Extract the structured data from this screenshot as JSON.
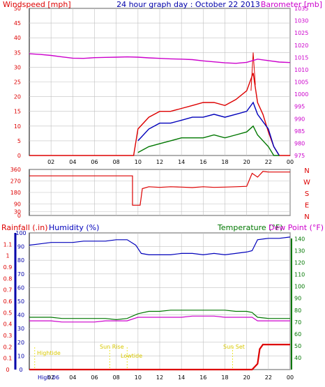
{
  "header": {
    "windspeed_label": "Windspeed [mph]",
    "title": "24 hour graph day : October 22 2013",
    "barometer_label": "Barometer [mb]"
  },
  "labels_panel3": {
    "rainfall": "Rainfall (.in)",
    "humidity": "Humidity (%)",
    "temperature": "Temperature (°F)",
    "dewpoint": "Dew Point (°F)"
  },
  "annotations": {
    "hightide": "Hightide",
    "sunrise": "Sun Rise",
    "lowtide": "Lowtide",
    "sunset": "Sun Set",
    "bottom_text": "High 06"
  },
  "colors": {
    "red": "#dd0000",
    "magenta": "#cc00cc",
    "blue": "#0000bb",
    "green": "#007700",
    "navy": "#0000aa",
    "grid": "#c0c0c0",
    "tide": "#e8e000"
  },
  "chart_data": [
    {
      "type": "line",
      "name": "wind-barometer",
      "x_ticks": [
        "02",
        "04",
        "06",
        "08",
        "10",
        "12",
        "14",
        "16",
        "18",
        "20",
        "22",
        "00"
      ],
      "xlim": [
        0,
        24
      ],
      "ylabel": "Windspeed [mph]",
      "ylim": [
        0,
        50
      ],
      "y_ticks": [
        0,
        5,
        10,
        15,
        20,
        25,
        30,
        35,
        40,
        45,
        50
      ],
      "y2label": "Barometer [mb]",
      "y2lim": [
        975,
        1035
      ],
      "y2_ticks": [
        975,
        980,
        985,
        990,
        995,
        1000,
        1005,
        1010,
        1015,
        1020,
        1025,
        1030,
        1035
      ],
      "series": [
        {
          "name": "Windspeed [mph]",
          "color": "#dd0000",
          "x": [
            0,
            1,
            2,
            3,
            4,
            5,
            6,
            7,
            8,
            9,
            9.6,
            10,
            11,
            12,
            13,
            14,
            15,
            16,
            17,
            18,
            19,
            20,
            20.6,
            21,
            21.5,
            22,
            22.5,
            23,
            24
          ],
          "y": [
            0,
            0,
            0,
            0,
            0,
            0,
            0,
            0,
            0,
            0,
            0,
            9,
            13,
            15,
            15,
            16,
            17,
            18,
            18,
            17,
            19,
            22,
            28,
            18,
            14,
            8,
            3,
            0,
            0
          ]
        },
        {
          "name": "Gust",
          "color": "#dd0000",
          "thin": true,
          "x": [
            20.4,
            20.6,
            20.8
          ],
          "y": [
            22,
            35,
            24
          ]
        },
        {
          "name": "Average",
          "color": "#0000bb",
          "x": [
            10,
            11,
            12,
            13,
            14,
            15,
            16,
            17,
            18,
            19,
            20,
            20.6,
            21,
            22,
            22.5,
            23
          ],
          "y": [
            5,
            9,
            11,
            11,
            12,
            13,
            13,
            14,
            13,
            14,
            15,
            18,
            14,
            9,
            3,
            0
          ]
        },
        {
          "name": "Low",
          "color": "#007700",
          "x": [
            10,
            11,
            12,
            13,
            14,
            15,
            16,
            17,
            18,
            19,
            20,
            20.6,
            21,
            22,
            22.5,
            23
          ],
          "y": [
            1,
            3,
            4,
            5,
            6,
            6,
            6,
            7,
            6,
            7,
            8,
            10,
            7,
            3,
            0,
            0
          ]
        },
        {
          "name": "Barometer [mb]",
          "color": "#cc00cc",
          "axis": "y2",
          "x": [
            0,
            1,
            2,
            3,
            4,
            5,
            6,
            7,
            8,
            9,
            10,
            11,
            12,
            13,
            14,
            15,
            16,
            17,
            18,
            19,
            20,
            21,
            22,
            23,
            24
          ],
          "y": [
            1016.5,
            1016.2,
            1015.8,
            1015.2,
            1014.7,
            1014.6,
            1014.9,
            1015.0,
            1015.1,
            1015.2,
            1015.1,
            1014.8,
            1014.6,
            1014.4,
            1014.3,
            1014.1,
            1013.6,
            1013.2,
            1012.8,
            1012.6,
            1013.0,
            1014.3,
            1013.7,
            1013.1,
            1012.9
          ]
        }
      ]
    },
    {
      "type": "line",
      "name": "wind-direction",
      "xlim": [
        0,
        24
      ],
      "ylim": [
        0,
        360
      ],
      "y_ticks": [
        0,
        30,
        90,
        180,
        270,
        360
      ],
      "y2_ticks": [
        "N",
        "W",
        "S",
        "E",
        "N"
      ],
      "series": [
        {
          "name": "Wind direction",
          "color": "#dd0000",
          "x": [
            0,
            9.5,
            9.5,
            10.2,
            10.4,
            11,
            12,
            13,
            14,
            15,
            16,
            17,
            18,
            19,
            20,
            20.5,
            21,
            21.5,
            22,
            22.5,
            23,
            24
          ],
          "y": [
            310,
            310,
            80,
            80,
            210,
            225,
            220,
            225,
            222,
            218,
            225,
            220,
            222,
            225,
            228,
            330,
            300,
            345,
            340,
            340,
            340,
            340
          ]
        }
      ]
    },
    {
      "type": "line",
      "name": "rain-humidity-temp",
      "xlim": [
        0,
        24
      ],
      "ylim": [
        0,
        1.2
      ],
      "y_ticks": [
        0,
        0.1,
        0.2,
        0.3,
        0.4,
        0.5,
        0.6,
        0.7,
        0.8,
        0.9,
        1,
        1.1
      ],
      "y_tick_labels": [
        "0",
        "0.1",
        "0.2",
        "0.3",
        "0.4",
        "0.5",
        "0.6",
        "0.7",
        "0.8",
        "0.9",
        "1",
        "1.1"
      ],
      "y_mid_lim": [
        0,
        100
      ],
      "y_mid_ticks": [
        0,
        10,
        20,
        30,
        40,
        50,
        60,
        70,
        80,
        90,
        100
      ],
      "y2lim": [
        30,
        145
      ],
      "y2_ticks": [
        40,
        50,
        60,
        70,
        80,
        90,
        100,
        110,
        120,
        130,
        140
      ],
      "series": [
        {
          "name": "Rainfall (.in)",
          "color": "#dd0000",
          "x": [
            0,
            20.5,
            21,
            21.2,
            21.5,
            24
          ],
          "y": [
            0,
            0,
            0.05,
            0.18,
            0.22,
            0.22
          ]
        },
        {
          "name": "Humidity (%)",
          "color": "#0000bb",
          "axis": "mid",
          "x": [
            0,
            1,
            2,
            3,
            4,
            5,
            6,
            7,
            8,
            9,
            9.8,
            10.3,
            11,
            12,
            13,
            14,
            15,
            16,
            17,
            18,
            19,
            20,
            20.5,
            21,
            22,
            23,
            24
          ],
          "y": [
            91,
            92,
            93,
            93,
            93,
            94,
            94,
            94,
            95,
            95,
            91,
            85,
            84,
            84,
            84,
            85,
            85,
            84,
            85,
            84,
            85,
            86,
            87,
            95,
            96,
            96,
            97
          ]
        },
        {
          "name": "Temperature (°F)",
          "color": "#007700",
          "axis": "y2",
          "x": [
            0,
            1,
            2,
            3,
            4,
            5,
            6,
            7,
            8,
            9,
            10,
            11,
            12,
            13,
            14,
            15,
            16,
            17,
            18,
            19,
            20,
            20.5,
            21,
            22,
            23,
            24
          ],
          "y": [
            74,
            74,
            74,
            73,
            73,
            73,
            73,
            73,
            72,
            73,
            77,
            79,
            79,
            80,
            80,
            80,
            80,
            80,
            80,
            79,
            79,
            78,
            74,
            73,
            73,
            73
          ]
        },
        {
          "name": "Dew Point (°F)",
          "color": "#cc00cc",
          "axis": "y2",
          "x": [
            0,
            1,
            2,
            3,
            4,
            5,
            6,
            7,
            8,
            9,
            10,
            11,
            12,
            13,
            14,
            15,
            16,
            17,
            18,
            19,
            20,
            20.5,
            21,
            22,
            23,
            24
          ],
          "y": [
            71,
            71,
            71,
            70,
            70,
            70,
            70,
            71,
            71,
            71,
            74,
            74,
            74,
            74,
            74,
            75,
            75,
            75,
            74,
            74,
            74,
            74,
            71,
            71,
            71,
            71
          ]
        }
      ]
    }
  ]
}
